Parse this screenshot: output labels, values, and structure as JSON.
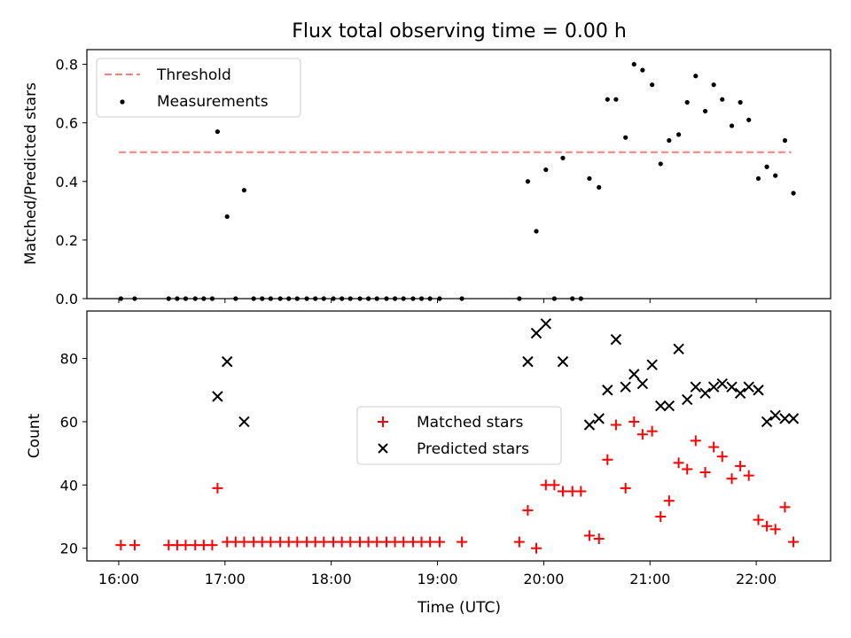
{
  "title": "Flux total observing time = 0.00 h",
  "chart_data": [
    {
      "type": "scatter",
      "ylabel": "Matched/Predicted stars",
      "xlabel": "",
      "ylim": [
        0,
        0.85
      ],
      "yticks": [
        "0.0",
        "0.2",
        "0.4",
        "0.6",
        "0.8"
      ],
      "ytick_values": [
        0,
        0.2,
        0.4,
        0.6,
        0.8
      ],
      "xlim_hours": [
        15.7,
        22.7
      ],
      "legend_position": "top-left",
      "threshold": {
        "name": "Threshold",
        "value": 0.5,
        "x_start": 16.0,
        "x_end": 22.33,
        "color": "#ff7f7f",
        "style": "dashed"
      },
      "series": [
        {
          "name": "Measurements",
          "color": "#000000",
          "marker": "dot",
          "points": [
            [
              16.02,
              0
            ],
            [
              16.15,
              0
            ],
            [
              16.47,
              0
            ],
            [
              16.55,
              0
            ],
            [
              16.63,
              0
            ],
            [
              16.72,
              0
            ],
            [
              16.8,
              0
            ],
            [
              16.88,
              0
            ],
            [
              16.93,
              0.57
            ],
            [
              17.02,
              0.28
            ],
            [
              17.1,
              0
            ],
            [
              17.18,
              0.37
            ],
            [
              17.27,
              0
            ],
            [
              17.35,
              0
            ],
            [
              17.43,
              0
            ],
            [
              17.52,
              0
            ],
            [
              17.6,
              0
            ],
            [
              17.68,
              0
            ],
            [
              17.77,
              0
            ],
            [
              17.85,
              0
            ],
            [
              17.93,
              0
            ],
            [
              18.02,
              0
            ],
            [
              18.1,
              0
            ],
            [
              18.18,
              0
            ],
            [
              18.27,
              0
            ],
            [
              18.35,
              0
            ],
            [
              18.43,
              0
            ],
            [
              18.52,
              0
            ],
            [
              18.6,
              0
            ],
            [
              18.68,
              0
            ],
            [
              18.77,
              0
            ],
            [
              18.85,
              0
            ],
            [
              18.93,
              0
            ],
            [
              19.02,
              0
            ],
            [
              19.23,
              0
            ],
            [
              19.77,
              0
            ],
            [
              19.85,
              0.4
            ],
            [
              19.93,
              0.23
            ],
            [
              20.02,
              0.44
            ],
            [
              20.1,
              0
            ],
            [
              20.18,
              0.48
            ],
            [
              20.27,
              0
            ],
            [
              20.35,
              0
            ],
            [
              20.43,
              0.41
            ],
            [
              20.52,
              0.38
            ],
            [
              20.6,
              0.68
            ],
            [
              20.68,
              0.68
            ],
            [
              20.77,
              0.55
            ],
            [
              20.85,
              0.8
            ],
            [
              20.93,
              0.78
            ],
            [
              21.02,
              0.73
            ],
            [
              21.1,
              0.46
            ],
            [
              21.18,
              0.54
            ],
            [
              21.27,
              0.56
            ],
            [
              21.35,
              0.67
            ],
            [
              21.43,
              0.76
            ],
            [
              21.52,
              0.64
            ],
            [
              21.6,
              0.73
            ],
            [
              21.68,
              0.68
            ],
            [
              21.77,
              0.59
            ],
            [
              21.85,
              0.67
            ],
            [
              21.93,
              0.61
            ],
            [
              22.02,
              0.41
            ],
            [
              22.1,
              0.45
            ],
            [
              22.18,
              0.42
            ],
            [
              22.27,
              0.54
            ],
            [
              22.35,
              0.36
            ]
          ]
        }
      ]
    },
    {
      "type": "scatter",
      "ylabel": "Count",
      "xlabel": "Time (UTC)",
      "ylim": [
        16,
        95
      ],
      "yticks": [
        "20",
        "40",
        "60",
        "80"
      ],
      "ytick_values": [
        20,
        40,
        60,
        80
      ],
      "xlim_hours": [
        15.7,
        22.7
      ],
      "xticks": [
        "16:00",
        "17:00",
        "18:00",
        "19:00",
        "20:00",
        "21:00",
        "22:00"
      ],
      "xtick_values": [
        16,
        17,
        18,
        19,
        20,
        21,
        22
      ],
      "legend_position": "center",
      "series": [
        {
          "name": "Matched stars",
          "color": "#ff0000",
          "marker": "plus",
          "points": [
            [
              16.02,
              21
            ],
            [
              16.15,
              21
            ],
            [
              16.47,
              21
            ],
            [
              16.55,
              21
            ],
            [
              16.63,
              21
            ],
            [
              16.72,
              21
            ],
            [
              16.8,
              21
            ],
            [
              16.88,
              21
            ],
            [
              16.93,
              39
            ],
            [
              17.02,
              22
            ],
            [
              17.1,
              22
            ],
            [
              17.18,
              22
            ],
            [
              17.27,
              22
            ],
            [
              17.35,
              22
            ],
            [
              17.43,
              22
            ],
            [
              17.52,
              22
            ],
            [
              17.6,
              22
            ],
            [
              17.68,
              22
            ],
            [
              17.77,
              22
            ],
            [
              17.85,
              22
            ],
            [
              17.93,
              22
            ],
            [
              18.02,
              22
            ],
            [
              18.1,
              22
            ],
            [
              18.18,
              22
            ],
            [
              18.27,
              22
            ],
            [
              18.35,
              22
            ],
            [
              18.43,
              22
            ],
            [
              18.52,
              22
            ],
            [
              18.6,
              22
            ],
            [
              18.68,
              22
            ],
            [
              18.77,
              22
            ],
            [
              18.85,
              22
            ],
            [
              18.93,
              22
            ],
            [
              19.02,
              22
            ],
            [
              19.23,
              22
            ],
            [
              19.77,
              22
            ],
            [
              19.85,
              32
            ],
            [
              19.93,
              20
            ],
            [
              20.02,
              40
            ],
            [
              20.1,
              40
            ],
            [
              20.18,
              38
            ],
            [
              20.27,
              38
            ],
            [
              20.35,
              38
            ],
            [
              20.43,
              24
            ],
            [
              20.52,
              23
            ],
            [
              20.6,
              48
            ],
            [
              20.68,
              59
            ],
            [
              20.77,
              39
            ],
            [
              20.85,
              60
            ],
            [
              20.93,
              56
            ],
            [
              21.02,
              57
            ],
            [
              21.1,
              30
            ],
            [
              21.18,
              35
            ],
            [
              21.27,
              47
            ],
            [
              21.35,
              45
            ],
            [
              21.43,
              54
            ],
            [
              21.52,
              44
            ],
            [
              21.6,
              52
            ],
            [
              21.68,
              49
            ],
            [
              21.77,
              42
            ],
            [
              21.85,
              46
            ],
            [
              21.93,
              43
            ],
            [
              22.02,
              29
            ],
            [
              22.1,
              27
            ],
            [
              22.18,
              26
            ],
            [
              22.27,
              33
            ],
            [
              22.35,
              22
            ]
          ]
        },
        {
          "name": "Predicted stars",
          "color": "#000000",
          "marker": "x",
          "points": [
            [
              16.93,
              68
            ],
            [
              17.02,
              79
            ],
            [
              17.18,
              60
            ],
            [
              19.85,
              79
            ],
            [
              19.93,
              88
            ],
            [
              20.02,
              91
            ],
            [
              20.18,
              79
            ],
            [
              20.43,
              59
            ],
            [
              20.52,
              61
            ],
            [
              20.6,
              70
            ],
            [
              20.68,
              86
            ],
            [
              20.77,
              71
            ],
            [
              20.85,
              75
            ],
            [
              20.93,
              72
            ],
            [
              21.02,
              78
            ],
            [
              21.1,
              65
            ],
            [
              21.18,
              65
            ],
            [
              21.27,
              83
            ],
            [
              21.35,
              67
            ],
            [
              21.43,
              71
            ],
            [
              21.52,
              69
            ],
            [
              21.6,
              71
            ],
            [
              21.68,
              72
            ],
            [
              21.77,
              71
            ],
            [
              21.85,
              69
            ],
            [
              21.93,
              71
            ],
            [
              22.02,
              70
            ],
            [
              22.1,
              60
            ],
            [
              22.18,
              62
            ],
            [
              22.27,
              61
            ],
            [
              22.35,
              61
            ]
          ]
        }
      ]
    }
  ]
}
